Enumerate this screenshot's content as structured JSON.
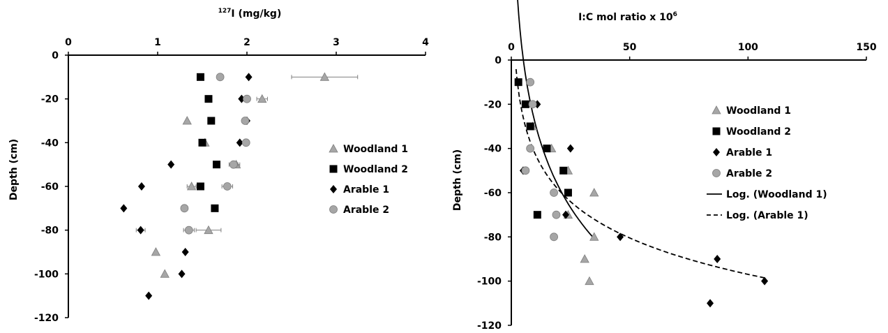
{
  "chart_data": [
    {
      "type": "scatter",
      "title_sup": "127",
      "title": "I (mg/kg)",
      "ylabel": "Depth (cm)",
      "xlim": [
        0,
        4
      ],
      "ylim": [
        -120,
        0
      ],
      "xticks": [
        "0",
        "1",
        "2",
        "3",
        "4"
      ],
      "yticks": [
        "0",
        "-20",
        "-40",
        "-60",
        "-80",
        "-100",
        "-120"
      ],
      "xaxis_position": "top",
      "grid": false,
      "legend_position": "right",
      "series": [
        {
          "name": "Woodland 1",
          "marker": "triangle",
          "color": "#a6a6a6",
          "points": [
            [
              2.87,
              -10,
              0.37
            ],
            [
              2.17,
              -20,
              0.06
            ],
            [
              1.33,
              -30,
              0
            ],
            [
              1.53,
              -40,
              0
            ],
            [
              1.88,
              -50,
              0.04
            ],
            [
              1.38,
              -60,
              0.05
            ],
            [
              1.57,
              -80,
              0.14
            ],
            [
              0.98,
              -90,
              0
            ],
            [
              1.08,
              -100,
              0
            ]
          ]
        },
        {
          "name": "Woodland 2",
          "marker": "square",
          "color": "#000000",
          "points": [
            [
              1.48,
              -10,
              0
            ],
            [
              1.57,
              -20,
              0
            ],
            [
              1.6,
              -30,
              0
            ],
            [
              1.5,
              -40,
              0
            ],
            [
              1.66,
              -50,
              0
            ],
            [
              1.48,
              -60,
              0
            ],
            [
              1.64,
              -70,
              0.03
            ]
          ]
        },
        {
          "name": "Arable 1",
          "marker": "diamond",
          "color": "#000000",
          "points": [
            [
              2.02,
              -10,
              0
            ],
            [
              1.94,
              -20,
              0
            ],
            [
              2.0,
              -30,
              0
            ],
            [
              1.92,
              -40,
              0
            ],
            [
              1.15,
              -50,
              0
            ],
            [
              0.82,
              -60,
              0
            ],
            [
              0.62,
              -70,
              0
            ],
            [
              0.81,
              -80,
              0.05
            ],
            [
              1.31,
              -90,
              0
            ],
            [
              1.27,
              -100,
              0
            ],
            [
              0.9,
              -110,
              0
            ]
          ]
        },
        {
          "name": "Arable 2",
          "marker": "circle",
          "color": "#a6a6a6",
          "points": [
            [
              1.7,
              -10,
              0
            ],
            [
              2.0,
              -20,
              0
            ],
            [
              1.98,
              -30,
              0
            ],
            [
              1.99,
              -40,
              0
            ],
            [
              1.85,
              -50,
              0.05
            ],
            [
              1.78,
              -60,
              0.06
            ],
            [
              1.3,
              -70,
              0
            ],
            [
              1.35,
              -80,
              0.06
            ]
          ]
        }
      ]
    },
    {
      "type": "scatter",
      "title": "I:C mol ratio x 10",
      "title_sup": "6",
      "ylabel": "Depth (cm)",
      "xlim": [
        0,
        150
      ],
      "ylim": [
        -120,
        0
      ],
      "xticks": [
        "0",
        "50",
        "100",
        "150"
      ],
      "yticks": [
        "0",
        "-20",
        "-40",
        "-60",
        "-80",
        "-100",
        "-120"
      ],
      "xaxis_position": "top",
      "grid": false,
      "legend_position": "right",
      "series": [
        {
          "name": "Woodland 1",
          "marker": "triangle",
          "color": "#a6a6a6",
          "points": [
            [
              9,
              -30
            ],
            [
              17,
              -40
            ],
            [
              24,
              -50
            ],
            [
              35,
              -60
            ],
            [
              24,
              -70
            ],
            [
              35,
              -80
            ],
            [
              31,
              -90
            ],
            [
              33,
              -100
            ]
          ]
        },
        {
          "name": "Woodland 2",
          "marker": "square",
          "color": "#000000",
          "points": [
            [
              3,
              -10
            ],
            [
              6,
              -20
            ],
            [
              8,
              -30
            ],
            [
              15,
              -40
            ],
            [
              22,
              -50
            ],
            [
              24,
              -60
            ],
            [
              11,
              -70
            ]
          ]
        },
        {
          "name": "Arable 1",
          "marker": "diamond",
          "color": "#000000",
          "points": [
            [
              11,
              -20
            ],
            [
              25,
              -40
            ],
            [
              5,
              -50
            ],
            [
              23,
              -70
            ],
            [
              46,
              -80
            ],
            [
              87,
              -90
            ],
            [
              107,
              -100
            ],
            [
              84,
              -110
            ]
          ]
        },
        {
          "name": "Arable 2",
          "marker": "circle",
          "color": "#a6a6a6",
          "points": [
            [
              8,
              -10
            ],
            [
              9,
              -20
            ],
            [
              8,
              -40
            ],
            [
              6,
              -50
            ],
            [
              18,
              -60
            ],
            [
              19,
              -70
            ],
            [
              18,
              -80
            ]
          ]
        }
      ],
      "trendlines": [
        {
          "name": "Log. (Woodland 1)",
          "style": "solid",
          "x_from": 1.5,
          "x_to": 35
        },
        {
          "name": "Log. (Arable 1)",
          "style": "dashed",
          "x_from": 2,
          "x_to": 107
        }
      ]
    }
  ]
}
